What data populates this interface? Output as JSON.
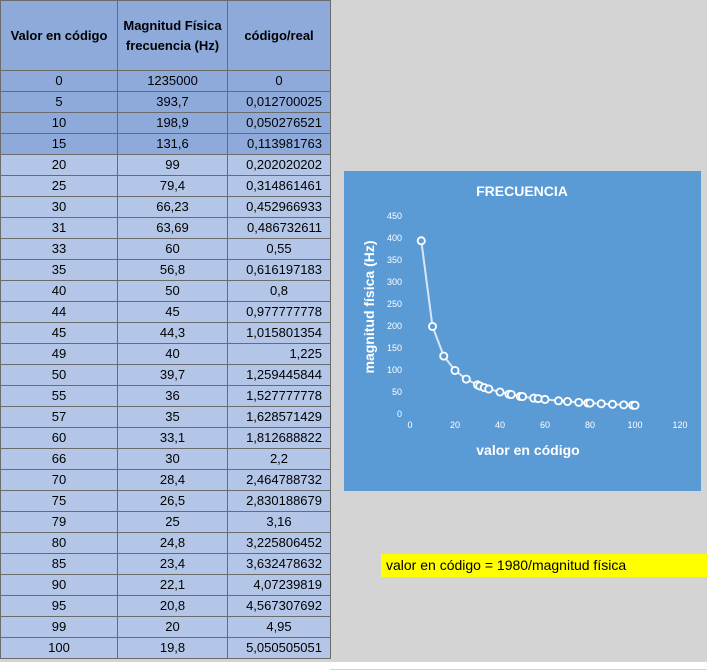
{
  "table": {
    "headers": [
      "Valor en código",
      "Magnitud Física frecuencia (Hz)",
      "código/real"
    ],
    "rows": [
      [
        "0",
        "1235000",
        "0"
      ],
      [
        "5",
        "393,7",
        "0,012700025"
      ],
      [
        "10",
        "198,9",
        "0,050276521"
      ],
      [
        "15",
        "131,6",
        "0,113981763"
      ],
      [
        "20",
        "99",
        "0,202020202"
      ],
      [
        "25",
        "79,4",
        "0,314861461"
      ],
      [
        "30",
        "66,23",
        "0,452966933"
      ],
      [
        "31",
        "63,69",
        "0,486732611"
      ],
      [
        "33",
        "60",
        "0,55"
      ],
      [
        "35",
        "56,8",
        "0,616197183"
      ],
      [
        "40",
        "50",
        "0,8"
      ],
      [
        "44",
        "45",
        "0,977777778"
      ],
      [
        "45",
        "44,3",
        "1,015801354"
      ],
      [
        "49",
        "40",
        "1,225"
      ],
      [
        "50",
        "39,7",
        "1,259445844"
      ],
      [
        "55",
        "36",
        "1,527777778"
      ],
      [
        "57",
        "35",
        "1,628571429"
      ],
      [
        "60",
        "33,1",
        "1,812688822"
      ],
      [
        "66",
        "30",
        "2,2"
      ],
      [
        "70",
        "28,4",
        "2,464788732"
      ],
      [
        "75",
        "26,5",
        "2,830188679"
      ],
      [
        "79",
        "25",
        "3,16"
      ],
      [
        "80",
        "24,8",
        "3,225806452"
      ],
      [
        "85",
        "23,4",
        "3,632478632"
      ],
      [
        "90",
        "22,1",
        "4,07239819"
      ],
      [
        "95",
        "20,8",
        "4,567307692"
      ],
      [
        "99",
        "20",
        "4,95"
      ],
      [
        "100",
        "19,8",
        "5,050505051"
      ]
    ]
  },
  "note": {
    "text": "valor en código = 1980/magnitud física"
  },
  "colors": {
    "header_fill": "#8eaadb",
    "row_dark": "#8eaadb",
    "row_light": "#b4c6e7",
    "chart_bg": "#5b9bd5",
    "note_bg": "#ffff00"
  },
  "chart_data": {
    "type": "scatter",
    "title": "FRECUENCIA",
    "xlabel": "valor en código",
    "ylabel": "magnitud física (Hz)",
    "xlim": [
      0,
      120
    ],
    "ylim": [
      0,
      450
    ],
    "xticks": [
      0,
      20,
      40,
      60,
      80,
      100,
      120
    ],
    "yticks": [
      0,
      50,
      100,
      150,
      200,
      250,
      300,
      350,
      400,
      450
    ],
    "grid": false,
    "series": [
      {
        "x": [
          5,
          10,
          15,
          20,
          25,
          30,
          31,
          33,
          35,
          40,
          44,
          45,
          49,
          50,
          55,
          57,
          60,
          66,
          70,
          75,
          79,
          80,
          85,
          90,
          95,
          99,
          100
        ],
        "y": [
          393.7,
          198.9,
          131.6,
          99,
          79.4,
          66.23,
          63.69,
          60,
          56.8,
          50,
          45,
          44.3,
          40,
          39.7,
          36,
          35,
          33.1,
          30,
          28.4,
          26.5,
          25,
          24.8,
          23.4,
          22.1,
          20.8,
          20,
          19.8
        ]
      }
    ]
  }
}
